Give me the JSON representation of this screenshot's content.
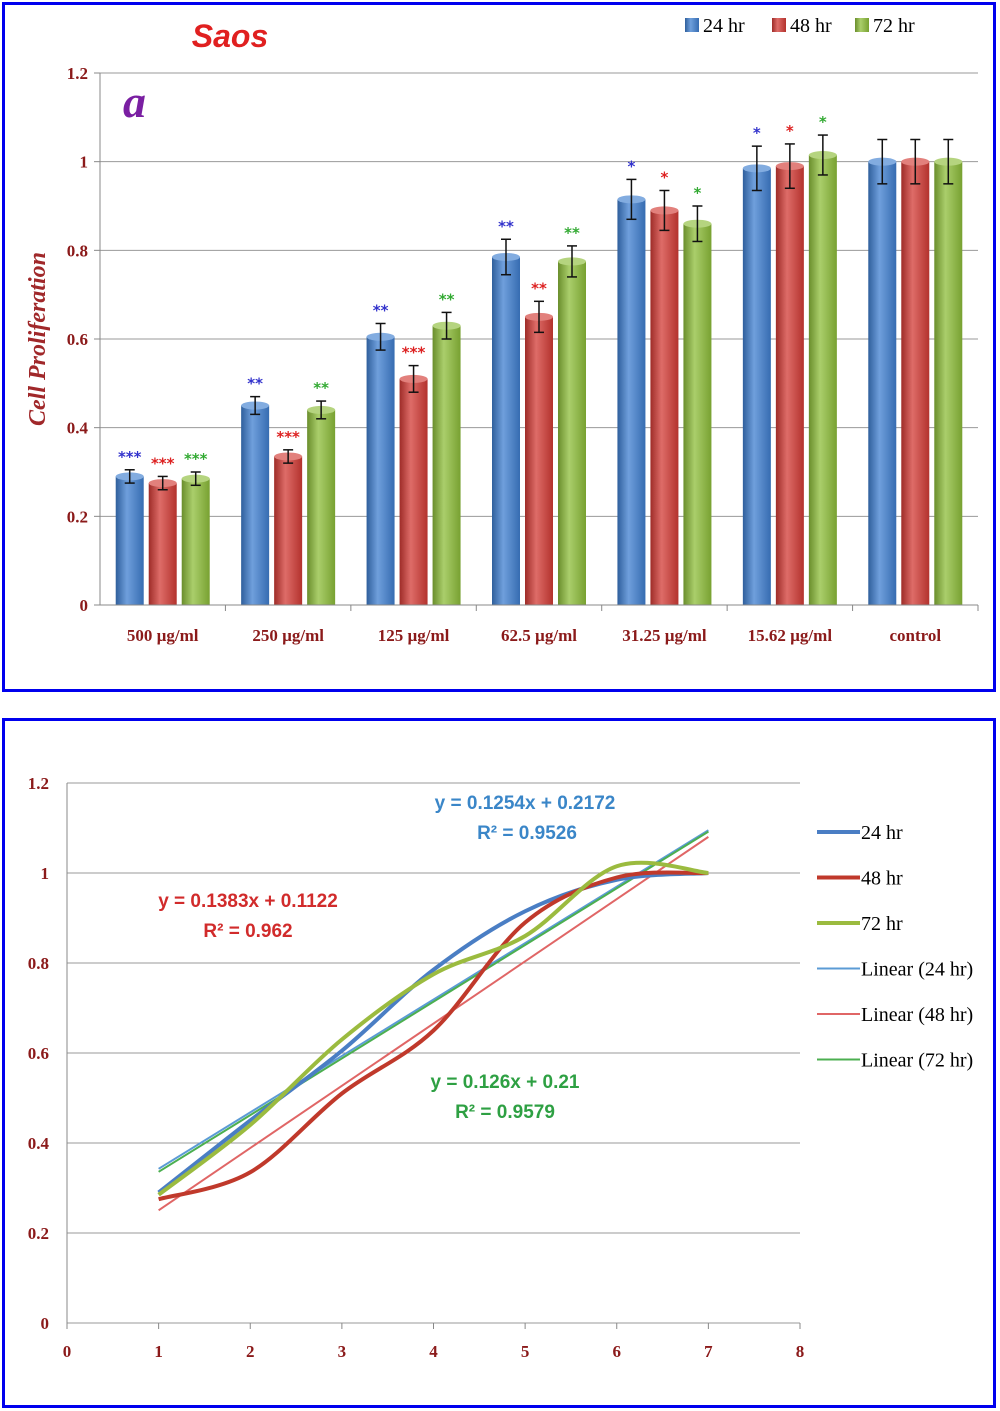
{
  "chart_data": [
    {
      "type": "bar",
      "title": "Saos",
      "panel_label": "a",
      "ylabel": "Cell Proliferation",
      "xlabel": "",
      "ylim": [
        0,
        1.2
      ],
      "yticks": [
        "0",
        "0.2",
        "0.4",
        "0.6",
        "0.8",
        "1",
        "1.2"
      ],
      "categories": [
        "500 µg/ml",
        "250 µg/ml",
        "125 µg/ml",
        "62.5 µg/ml",
        "31.25 µg/ml",
        "15.62 µg/ml",
        "control"
      ],
      "legend_position": "top-right",
      "grid": true,
      "series": [
        {
          "name": "24 hr",
          "color": "#3f7fd0",
          "values": [
            0.29,
            0.45,
            0.605,
            0.785,
            0.915,
            0.985,
            1.0
          ],
          "errors": [
            0.015,
            0.02,
            0.03,
            0.04,
            0.045,
            0.05,
            0.05
          ],
          "significance": [
            "***",
            "**",
            "**",
            "**",
            "*",
            "*",
            ""
          ]
        },
        {
          "name": "48 hr",
          "color": "#d33b35",
          "values": [
            0.275,
            0.335,
            0.51,
            0.65,
            0.89,
            0.99,
            1.0
          ],
          "errors": [
            0.015,
            0.015,
            0.03,
            0.035,
            0.045,
            0.05,
            0.05
          ],
          "significance": [
            "***",
            "***",
            "***",
            "**",
            "*",
            "*",
            ""
          ]
        },
        {
          "name": "72 hr",
          "color": "#8dbd3a",
          "values": [
            0.285,
            0.44,
            0.63,
            0.775,
            0.86,
            1.015,
            1.0
          ],
          "errors": [
            0.015,
            0.02,
            0.03,
            0.035,
            0.04,
            0.045,
            0.05
          ],
          "significance": [
            "***",
            "**",
            "**",
            "**",
            "*",
            "*",
            ""
          ]
        }
      ],
      "significance_colors": [
        "#3333cc",
        "#dd2222",
        "#33aa33"
      ]
    },
    {
      "type": "line",
      "title": "",
      "xlabel": "",
      "ylabel": "",
      "xlim": [
        0,
        8
      ],
      "ylim": [
        0,
        1.2
      ],
      "xticks": [
        "0",
        "1",
        "2",
        "3",
        "4",
        "5",
        "6",
        "7",
        "8"
      ],
      "yticks": [
        "0",
        "0.2",
        "0.4",
        "0.6",
        "0.8",
        "1",
        "1.2"
      ],
      "legend_position": "right",
      "grid": true,
      "x": [
        1,
        2,
        3,
        4,
        5,
        6,
        7
      ],
      "series": [
        {
          "name": "24 hr",
          "color": "#4a7ec4",
          "values": [
            0.29,
            0.45,
            0.605,
            0.785,
            0.915,
            0.985,
            1.0
          ]
        },
        {
          "name": "48 hr",
          "color": "#c0392b",
          "values": [
            0.275,
            0.335,
            0.51,
            0.65,
            0.89,
            0.99,
            1.0
          ]
        },
        {
          "name": "72 hr",
          "color": "#9bbb3f",
          "values": [
            0.285,
            0.44,
            0.63,
            0.775,
            0.86,
            1.015,
            1.0
          ]
        }
      ],
      "trendlines": [
        {
          "name": "Linear (24 hr)",
          "color": "#5b9bd5",
          "slope": 0.1254,
          "intercept": 0.2172,
          "x_range": [
            1,
            7
          ],
          "equation": "y = 0.1254x + 0.2172",
          "r2": "R² = 0.9526",
          "label_color": "#3a86c8"
        },
        {
          "name": "Linear (48 hr)",
          "color": "#e06666",
          "slope": 0.1383,
          "intercept": 0.1122,
          "x_range": [
            1,
            7
          ],
          "equation": "y = 0.1383x + 0.1122",
          "r2": "R² = 0.962",
          "label_color": "#d12b2b"
        },
        {
          "name": "Linear (72 hr)",
          "color": "#4caf50",
          "slope": 0.126,
          "intercept": 0.21,
          "x_range": [
            1,
            7
          ],
          "equation": "y = 0.126x + 0.21",
          "r2": "R² = 0.9579",
          "label_color": "#2ea043"
        }
      ]
    }
  ]
}
